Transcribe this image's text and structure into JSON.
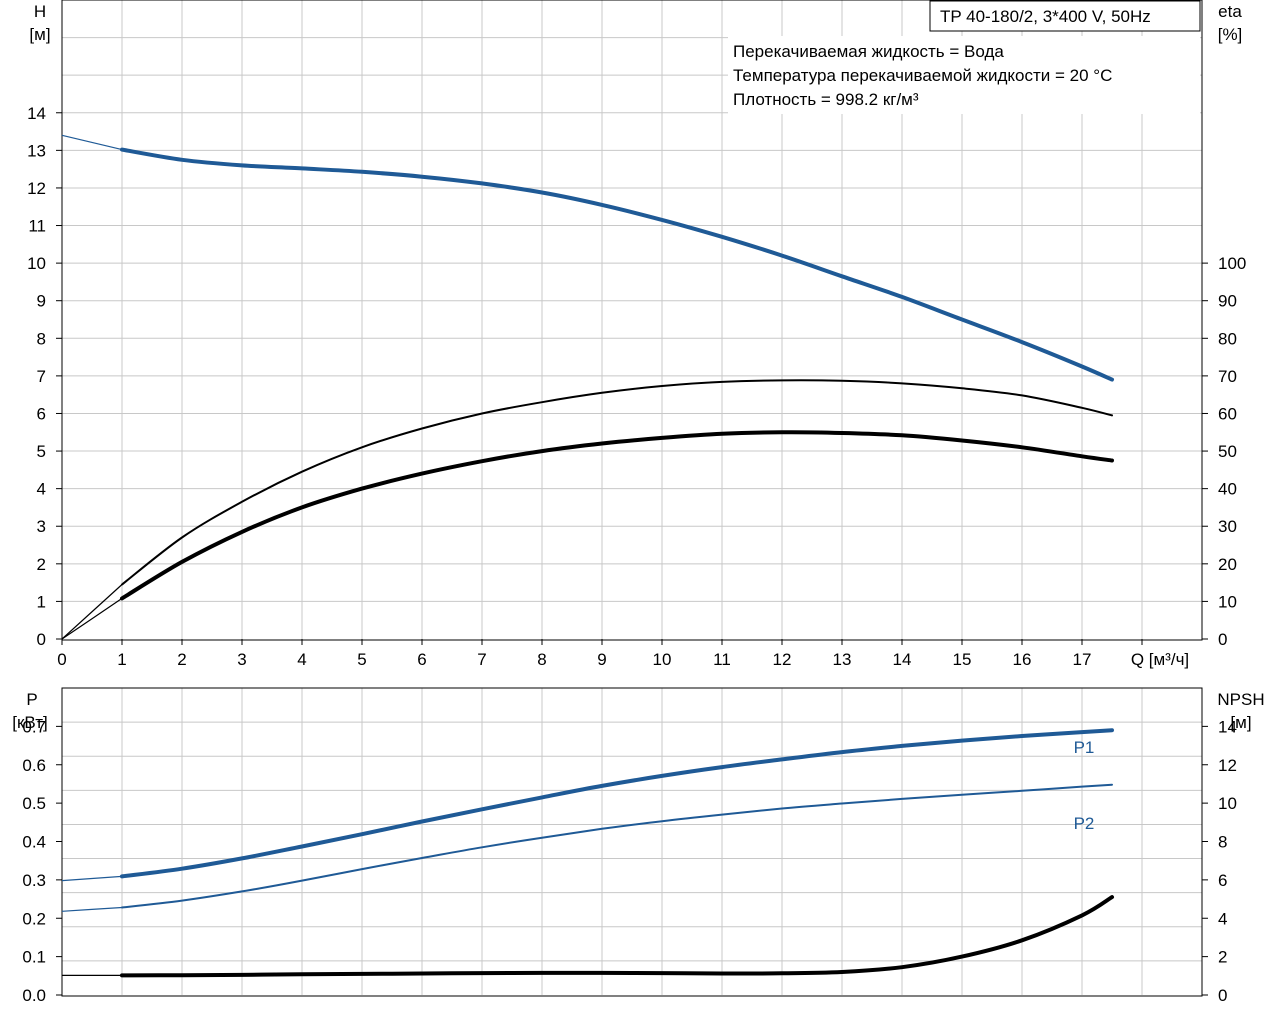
{
  "title_box": "TP 40-180/2, 3*400 V, 50Hz",
  "info_lines": [
    "Перекачиваемая жидкость = Вода",
    "Температура перекачиваемой жидкости = 20 °C",
    "Плотность = 998.2 кг/м³"
  ],
  "chart_data": [
    {
      "type": "line",
      "name": "head-efficiency",
      "grid": true,
      "x_label": "Q [м³/ч]",
      "x_ticks": [
        "0",
        "1",
        "2",
        "3",
        "4",
        "5",
        "6",
        "7",
        "8",
        "9",
        "10",
        "11",
        "12",
        "13",
        "14",
        "15",
        "16",
        "17"
      ],
      "xlim": [
        0,
        19
      ],
      "left_axis": {
        "label_line1": "H",
        "label_line2": "[м]",
        "ticks": [
          "0",
          "1",
          "2",
          "3",
          "4",
          "5",
          "6",
          "7",
          "8",
          "9",
          "10",
          "11",
          "12",
          "13",
          "14"
        ],
        "ylim": [
          0,
          17
        ]
      },
      "right_axis": {
        "label_line1": "eta",
        "label_line2": "[%]",
        "ticks": [
          "0",
          "10",
          "20",
          "30",
          "40",
          "50",
          "60",
          "70",
          "80",
          "90",
          "100"
        ],
        "ylim": [
          0,
          170
        ]
      },
      "series": [
        {
          "key": "H",
          "axis": "left",
          "color": "#1f5a96",
          "extrapolated": {
            "x": [
              0,
              1
            ],
            "y": [
              13.4,
              13.02
            ]
          },
          "x": [
            1,
            2,
            3,
            4,
            5,
            6,
            7,
            8,
            9,
            10,
            11,
            12,
            13,
            14,
            15,
            16,
            17,
            17.5
          ],
          "y": [
            13.02,
            12.75,
            12.6,
            12.52,
            12.43,
            12.3,
            12.12,
            11.88,
            11.55,
            11.15,
            10.7,
            10.2,
            9.65,
            9.1,
            8.5,
            7.9,
            7.25,
            6.9
          ]
        },
        {
          "key": "eta-thin",
          "axis": "right",
          "color": "#000000",
          "extrapolated": {
            "x": [
              0,
              1
            ],
            "y": [
              0,
              14.5
            ]
          },
          "x": [
            1,
            2,
            3,
            4,
            5,
            6,
            7,
            8,
            9,
            10,
            11,
            12,
            13,
            14,
            15,
            16,
            17,
            17.5
          ],
          "y": [
            14.5,
            27,
            36.5,
            44.5,
            51,
            56,
            60,
            63,
            65.5,
            67.3,
            68.4,
            68.8,
            68.7,
            68,
            66.7,
            64.8,
            61.5,
            59.5
          ]
        },
        {
          "key": "eta-thick",
          "axis": "right",
          "color": "#000000",
          "extrapolated": {
            "x": [
              0,
              1
            ],
            "y": [
              0,
              10.8
            ]
          },
          "x": [
            1,
            2,
            3,
            4,
            5,
            6,
            7,
            8,
            9,
            10,
            11,
            12,
            13,
            14,
            15,
            16,
            17,
            17.5
          ],
          "y": [
            10.8,
            20.5,
            28.5,
            35,
            40,
            44,
            47.3,
            50,
            52,
            53.5,
            54.6,
            55,
            54.8,
            54.2,
            52.8,
            51,
            48.6,
            47.5
          ]
        }
      ]
    },
    {
      "type": "line",
      "name": "power-npsh",
      "grid": true,
      "xlim": [
        0,
        19
      ],
      "left_axis": {
        "label_line1": "P",
        "label_line2": "[кВт]",
        "ticks": [
          "0.0",
          "0.1",
          "0.2",
          "0.3",
          "0.4",
          "0.5",
          "0.6",
          "0.7"
        ],
        "ylim": [
          0,
          0.8
        ]
      },
      "right_axis": {
        "label_line1": "NPSH",
        "label_line2": "[м]",
        "ticks": [
          "0",
          "2",
          "4",
          "6",
          "8",
          "10",
          "12",
          "14"
        ],
        "ylim": [
          0,
          16
        ]
      },
      "series": [
        {
          "key": "P1",
          "label": "P1",
          "axis": "left",
          "color": "#1f5a96",
          "extrapolated": {
            "x": [
              0,
              1
            ],
            "y": [
              0.298,
              0.309
            ]
          },
          "x": [
            1,
            2,
            3,
            4,
            5,
            6,
            7,
            8,
            9,
            10,
            11,
            12,
            13,
            14,
            15,
            16,
            17,
            17.5
          ],
          "y": [
            0.309,
            0.329,
            0.356,
            0.387,
            0.419,
            0.452,
            0.484,
            0.515,
            0.545,
            0.571,
            0.594,
            0.614,
            0.633,
            0.649,
            0.663,
            0.675,
            0.685,
            0.69
          ]
        },
        {
          "key": "P2",
          "label": "P2",
          "axis": "left",
          "color": "#1f5a96",
          "extrapolated": {
            "x": [
              0,
              1
            ],
            "y": [
              0.218,
              0.228
            ]
          },
          "x": [
            1,
            2,
            3,
            4,
            5,
            6,
            7,
            8,
            9,
            10,
            11,
            12,
            13,
            14,
            15,
            16,
            17,
            17.5
          ],
          "y": [
            0.228,
            0.246,
            0.27,
            0.298,
            0.328,
            0.357,
            0.385,
            0.41,
            0.433,
            0.453,
            0.47,
            0.486,
            0.499,
            0.511,
            0.522,
            0.532,
            0.543,
            0.548
          ]
        },
        {
          "key": "NPSH",
          "axis": "right",
          "color": "#000000",
          "extrapolated": {
            "x": [
              0,
              1
            ],
            "y": [
              1.02,
              1.02
            ]
          },
          "x": [
            1,
            2,
            3,
            4,
            5,
            6,
            7,
            8,
            9,
            10,
            11,
            12,
            13,
            14,
            15,
            16,
            17,
            17.5
          ],
          "y": [
            1.02,
            1.03,
            1.05,
            1.08,
            1.1,
            1.12,
            1.14,
            1.15,
            1.15,
            1.14,
            1.12,
            1.13,
            1.2,
            1.45,
            2.0,
            2.85,
            4.15,
            5.1
          ]
        }
      ]
    }
  ]
}
